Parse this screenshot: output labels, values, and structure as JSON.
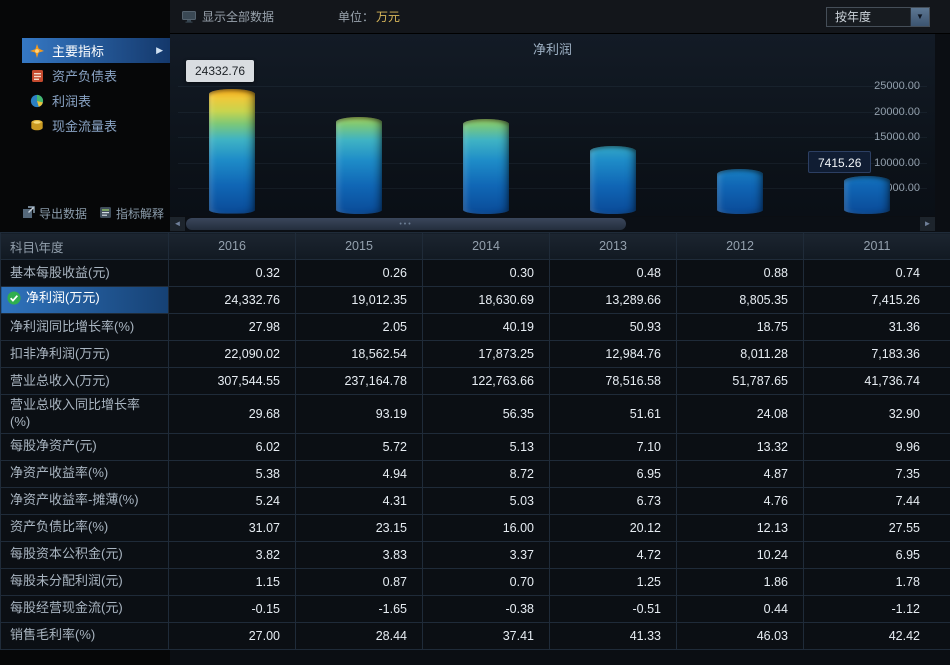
{
  "topbar": {
    "show_all": "显示全部数据",
    "unit_label": "单位：",
    "unit_value": "万元",
    "period_dropdown": "按年度"
  },
  "sidebar": {
    "items": [
      {
        "label": "主要指标",
        "icon": "star-icon",
        "selected": true
      },
      {
        "label": "资产负债表",
        "icon": "balance-sheet-icon",
        "selected": false
      },
      {
        "label": "利润表",
        "icon": "profit-pie-icon",
        "selected": false
      },
      {
        "label": "现金流量表",
        "icon": "cashflow-icon",
        "selected": false
      }
    ],
    "tools": [
      {
        "label": "导出数据",
        "icon": "export-icon"
      },
      {
        "label": "指标解释",
        "icon": "explain-icon"
      }
    ]
  },
  "chart_data": {
    "type": "bar",
    "title": "净利润",
    "categories": [
      "2016",
      "2015",
      "2014",
      "2013",
      "2012",
      "2011"
    ],
    "values": [
      24332.76,
      19012.35,
      18630.69,
      13289.66,
      8805.35,
      7415.26
    ],
    "ylim": [
      0,
      27000
    ],
    "yticks": [
      5000,
      10000,
      15000,
      20000,
      25000
    ],
    "ytick_labels": [
      "5000.00",
      "10000.00",
      "15000.00",
      "20000.00",
      "25000.00"
    ],
    "axis_side": "right",
    "grid": true,
    "legend_position": "none",
    "bar_gradient": [
      "#0a4a97",
      "#1e8cc8",
      "#7cc878",
      "#eec93a",
      "#f59d0e"
    ],
    "tooltips": [
      {
        "text": "24332.76",
        "style": "light",
        "index": 0
      },
      {
        "text": "7415.26",
        "style": "dark",
        "index": 5
      }
    ]
  },
  "table": {
    "corner": "科目\\年度",
    "years": [
      "2016",
      "2015",
      "2014",
      "2013",
      "2012",
      "2011"
    ],
    "rows": [
      {
        "label": "基本每股收益(元)",
        "selected": false,
        "values": [
          "0.32",
          "0.26",
          "0.30",
          "0.48",
          "0.88",
          "0.74"
        ]
      },
      {
        "label": "净利润(万元)",
        "selected": true,
        "values": [
          "24,332.76",
          "19,012.35",
          "18,630.69",
          "13,289.66",
          "8,805.35",
          "7,415.26"
        ]
      },
      {
        "label": "净利润同比增长率(%)",
        "selected": false,
        "values": [
          "27.98",
          "2.05",
          "40.19",
          "50.93",
          "18.75",
          "31.36"
        ]
      },
      {
        "label": "扣非净利润(万元)",
        "selected": false,
        "values": [
          "22,090.02",
          "18,562.54",
          "17,873.25",
          "12,984.76",
          "8,011.28",
          "7,183.36"
        ]
      },
      {
        "label": "营业总收入(万元)",
        "selected": false,
        "values": [
          "307,544.55",
          "237,164.78",
          "122,763.66",
          "78,516.58",
          "51,787.65",
          "41,736.74"
        ]
      },
      {
        "label": "营业总收入同比增长率(%)",
        "selected": false,
        "values": [
          "29.68",
          "93.19",
          "56.35",
          "51.61",
          "24.08",
          "32.90"
        ]
      },
      {
        "label": "每股净资产(元)",
        "selected": false,
        "values": [
          "6.02",
          "5.72",
          "5.13",
          "7.10",
          "13.32",
          "9.96"
        ]
      },
      {
        "label": "净资产收益率(%)",
        "selected": false,
        "values": [
          "5.38",
          "4.94",
          "8.72",
          "6.95",
          "4.87",
          "7.35"
        ]
      },
      {
        "label": "净资产收益率-摊薄(%)",
        "selected": false,
        "values": [
          "5.24",
          "4.31",
          "5.03",
          "6.73",
          "4.76",
          "7.44"
        ]
      },
      {
        "label": "资产负债比率(%)",
        "selected": false,
        "values": [
          "31.07",
          "23.15",
          "16.00",
          "20.12",
          "12.13",
          "27.55"
        ]
      },
      {
        "label": "每股资本公积金(元)",
        "selected": false,
        "values": [
          "3.82",
          "3.83",
          "3.37",
          "4.72",
          "10.24",
          "6.95"
        ]
      },
      {
        "label": "每股未分配利润(元)",
        "selected": false,
        "values": [
          "1.15",
          "0.87",
          "0.70",
          "1.25",
          "1.86",
          "1.78"
        ]
      },
      {
        "label": "每股经营现金流(元)",
        "selected": false,
        "values": [
          "-0.15",
          "-1.65",
          "-0.38",
          "-0.51",
          "0.44",
          "-1.12"
        ]
      },
      {
        "label": "销售毛利率(%)",
        "selected": false,
        "values": [
          "27.00",
          "28.44",
          "37.41",
          "41.33",
          "46.03",
          "42.42"
        ]
      }
    ]
  }
}
